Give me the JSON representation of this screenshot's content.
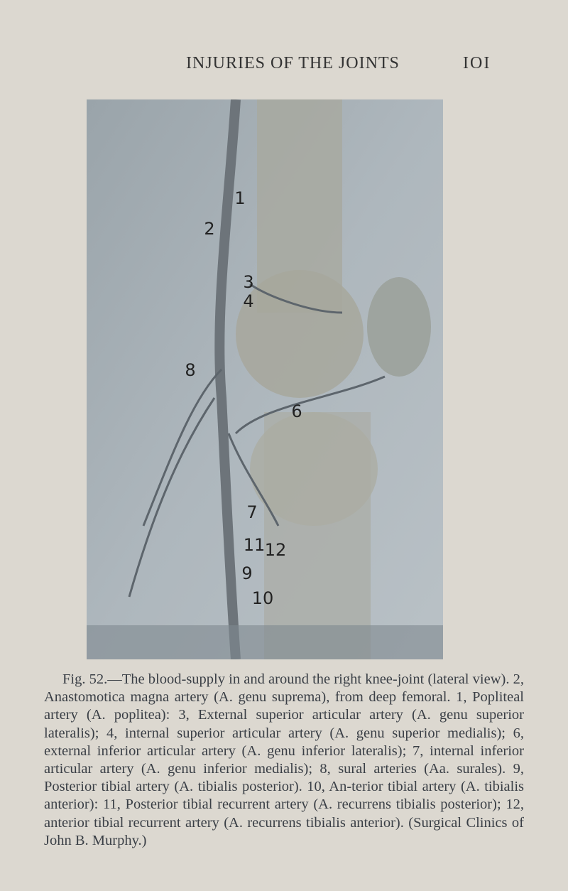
{
  "header": {
    "title": "INJURIES OF THE JOINTS",
    "page_number": "IOI"
  },
  "figure": {
    "labels": [
      "1",
      "2",
      "3",
      "4",
      "8",
      "6",
      "7",
      "11",
      "12",
      "9",
      "10"
    ]
  },
  "caption": "Fig. 52.—The blood-supply in and around the right knee-joint (lateral view). 2, Anastomotica magna artery (A. genu suprema), from deep femoral. 1, Popliteal artery (A. poplitea): 3, External superior articular artery (A. genu superior lateralis); 4, internal superior articular artery (A. genu superior medialis); 6, external inferior articular artery (A. genu inferior lateralis); 7, internal inferior articular artery (A. genu inferior medialis); 8, sural arteries (Aa. surales). 9, Posterior tibial artery (A. tibialis posterior). 10, An-terior tibial artery (A. tibialis anterior): 11, Posterior tibial recurrent artery (A. recurrens tibialis posterior); 12, anterior tibial recurrent artery (A. recurrens tibialis anterior). (Surgical Clinics of John B. Murphy.)"
}
